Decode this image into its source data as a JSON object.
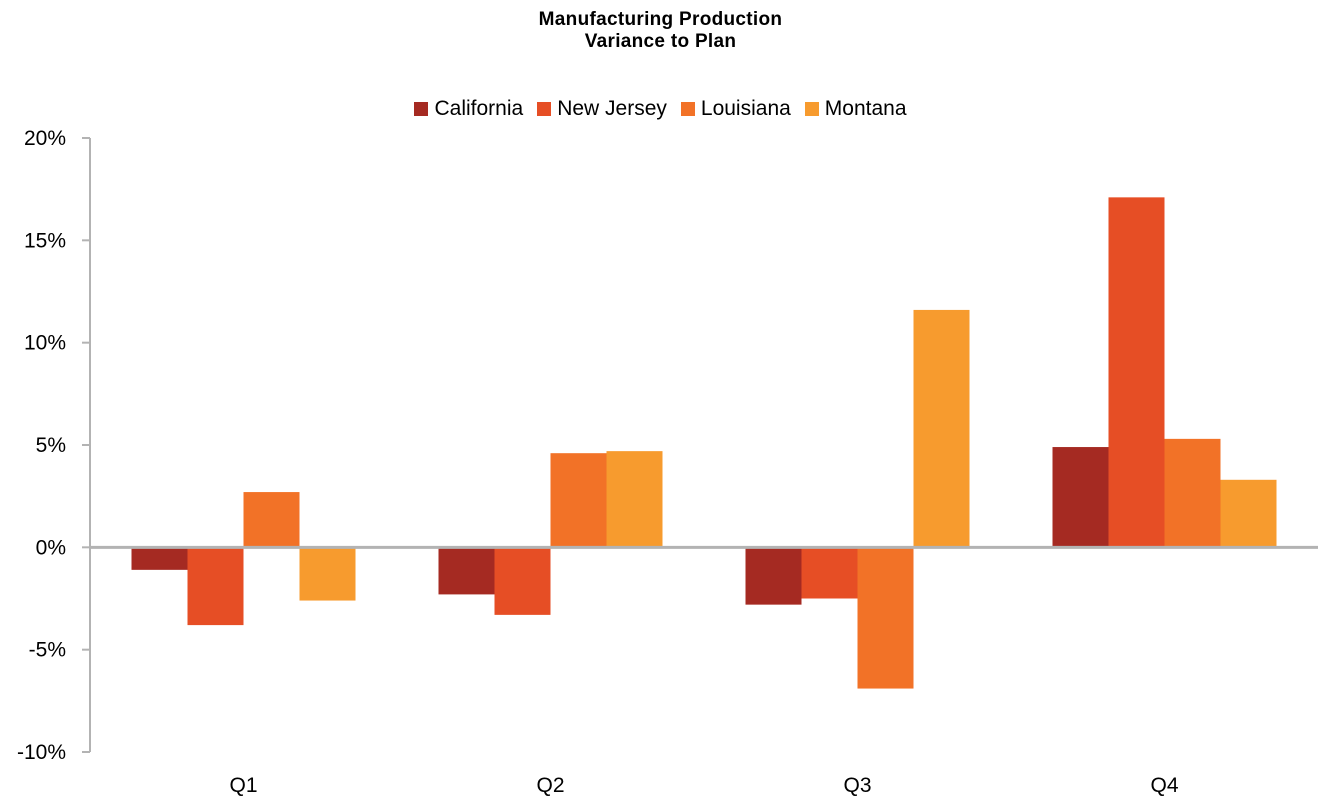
{
  "chart_data": {
    "type": "bar",
    "title": [
      "Manufacturing Production",
      "Variance to Plan"
    ],
    "xlabel": "",
    "ylabel": "",
    "categories": [
      "Q1",
      "Q2",
      "Q3",
      "Q4"
    ],
    "series": [
      {
        "name": "California",
        "color": "#A52A22",
        "values": [
          -1.1,
          -2.3,
          -2.8,
          4.9
        ]
      },
      {
        "name": "New Jersey",
        "color": "#E64E25",
        "values": [
          -3.8,
          -3.3,
          -2.5,
          17.1
        ]
      },
      {
        "name": "Louisiana",
        "color": "#F27227",
        "values": [
          2.7,
          4.6,
          -6.9,
          5.3
        ]
      },
      {
        "name": "Montana",
        "color": "#F79B2E",
        "values": [
          -2.6,
          4.7,
          11.6,
          3.3
        ]
      }
    ],
    "ylim": [
      -10,
      20
    ],
    "yticks": [
      -10,
      -5,
      0,
      5,
      10,
      15,
      20
    ],
    "ytick_labels": [
      "-10%",
      "-5%",
      "0%",
      "5%",
      "10%",
      "15%",
      "20%"
    ],
    "grid": false,
    "legend_position": "top"
  }
}
